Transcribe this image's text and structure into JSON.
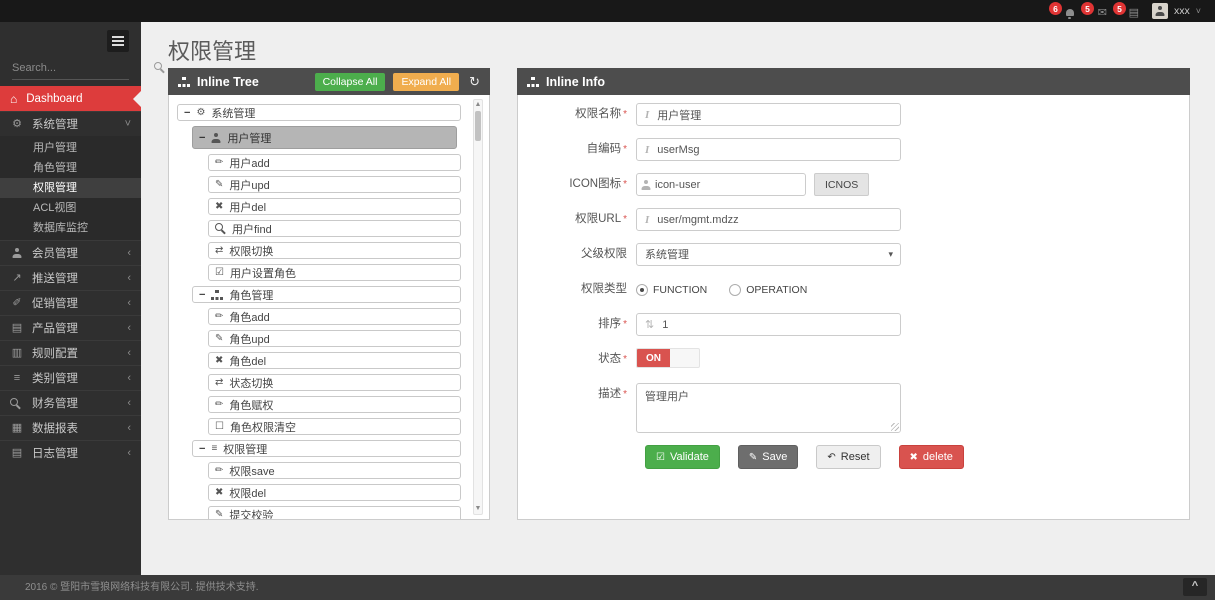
{
  "topbar": {
    "badges": [
      {
        "icon": "bell-icon",
        "count": "6"
      },
      {
        "icon": "envelope-icon",
        "count": "5"
      },
      {
        "icon": "tasks-icon",
        "count": "5"
      }
    ],
    "user_name": "xxx"
  },
  "sidebar": {
    "search_placeholder": "Search...",
    "dashboard_label": "Dashboard",
    "menu": [
      {
        "icon": "cogs",
        "label": "系统管理",
        "expanded": true,
        "children": [
          {
            "label": "用户管理"
          },
          {
            "label": "角色管理"
          },
          {
            "label": "权限管理",
            "active": true
          },
          {
            "label": "ACL视图"
          },
          {
            "label": "数据库监控"
          }
        ]
      },
      {
        "icon": "person",
        "label": "会员管理"
      },
      {
        "icon": "share",
        "label": "推送管理"
      },
      {
        "icon": "promo",
        "label": "促销管理"
      },
      {
        "icon": "book",
        "label": "产品管理"
      },
      {
        "icon": "news",
        "label": "规则配置"
      },
      {
        "icon": "list",
        "label": "类别管理"
      },
      {
        "icon": "key",
        "label": "财务管理"
      },
      {
        "icon": "chart",
        "label": "数据报表"
      },
      {
        "icon": "calendar",
        "label": "日志管理"
      }
    ]
  },
  "page": {
    "title": "权限管理"
  },
  "tree_panel": {
    "title": "Inline Tree",
    "collapse_all": "Collapse All",
    "expand_all": "Expand All",
    "nodes": [
      {
        "level": 1,
        "toggle": "−",
        "icon": "cogs",
        "label": "系统管理"
      },
      {
        "level": 2,
        "toggle": "−",
        "icon": "person",
        "label": "用户管理",
        "selected": true
      },
      {
        "level": 3,
        "icon": "pencil",
        "label": "用户add"
      },
      {
        "level": 3,
        "icon": "edit",
        "label": "用户upd"
      },
      {
        "level": 3,
        "icon": "close",
        "label": "用户del"
      },
      {
        "level": 3,
        "icon": "search",
        "label": "用户find"
      },
      {
        "level": 3,
        "icon": "swap",
        "label": "权限切换"
      },
      {
        "level": 3,
        "icon": "checksq",
        "label": "用户设置角色"
      },
      {
        "level": 2,
        "toggle": "−",
        "icon": "sitemap",
        "label": "角色管理"
      },
      {
        "level": 3,
        "icon": "pencil",
        "label": "角色add"
      },
      {
        "level": 3,
        "icon": "edit",
        "label": "角色upd"
      },
      {
        "level": 3,
        "icon": "close",
        "label": "角色del"
      },
      {
        "level": 3,
        "icon": "swap",
        "label": "状态切换"
      },
      {
        "level": 3,
        "icon": "pencil",
        "label": "角色赋权"
      },
      {
        "level": 3,
        "icon": "square",
        "label": "角色权限清空"
      },
      {
        "level": 2,
        "toggle": "−",
        "icon": "list",
        "label": "权限管理"
      },
      {
        "level": 3,
        "icon": "pencil",
        "label": "权限save"
      },
      {
        "level": 3,
        "icon": "close",
        "label": "权限del"
      },
      {
        "level": 3,
        "icon": "edit",
        "label": "提交校验"
      }
    ]
  },
  "info_panel": {
    "title": "Inline Info",
    "form": {
      "name": {
        "label": "权限名称",
        "value": "用户管理"
      },
      "code": {
        "label": "自编码",
        "value": "userMsg"
      },
      "icon": {
        "label": "ICON图标",
        "value": "icon-user",
        "button": "ICNOS"
      },
      "url": {
        "label": "权限URL",
        "value": "user/mgmt.mdzz"
      },
      "parent": {
        "label": "父级权限",
        "value": "系统管理"
      },
      "type": {
        "label": "权限类型",
        "options": [
          "FUNCTION",
          "OPERATION"
        ],
        "selected": "FUNCTION"
      },
      "sort": {
        "label": "排序",
        "value": "1"
      },
      "status": {
        "label": "状态",
        "value": "ON"
      },
      "desc": {
        "label": "描述",
        "value": "管理用户"
      },
      "buttons": {
        "validate": "Validate",
        "save": "Save",
        "reset": "Reset",
        "delete": "delete"
      }
    }
  },
  "footer": {
    "text": "2016 © 暨阳市雪狼网络科技有限公司. 提供技术支持."
  }
}
